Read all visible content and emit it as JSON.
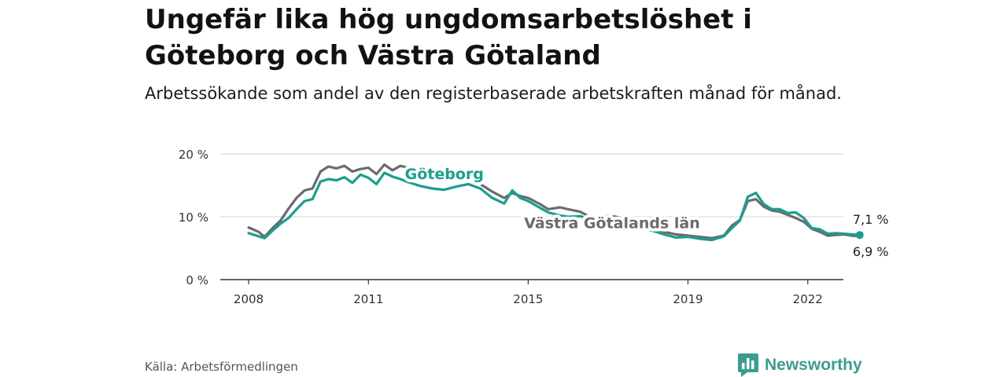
{
  "title": "Ungefär lika hög ungdomsarbetslöshet i Göteborg och Västra Götaland",
  "subtitle": "Arbetssökande som andel av den registerbaserade arbetskraften månad för månad.",
  "source": "Källa: Arbetsförmedlingen",
  "brand": {
    "name": "Newsworthy",
    "icon": "newsworthy-logo-icon"
  },
  "colors": {
    "goteborg": "#1a9e8f",
    "vastra": "#6b6b6b",
    "grid": "#dcdcdc",
    "axis": "#333333"
  },
  "chart_data": {
    "type": "line",
    "ylim": [
      0,
      20
    ],
    "xlim": [
      2008,
      2023.6
    ],
    "y_ticks": [
      {
        "value": 0,
        "label": "0 %"
      },
      {
        "value": 10,
        "label": "10 %"
      },
      {
        "value": 20,
        "label": "20 %"
      }
    ],
    "x_ticks": [
      {
        "value": 2008,
        "label": "2008"
      },
      {
        "value": 2011,
        "label": "2011"
      },
      {
        "value": 2015,
        "label": "2015"
      },
      {
        "value": 2019,
        "label": "2019"
      },
      {
        "value": 2022,
        "label": "2022"
      }
    ],
    "grid": true,
    "series": [
      {
        "name": "Västra Götalands län",
        "color_key": "vastra",
        "end_label": "6,9 %",
        "points": [
          [
            2008.0,
            8.3
          ],
          [
            2008.25,
            7.6
          ],
          [
            2008.4,
            6.8
          ],
          [
            2008.6,
            8.2
          ],
          [
            2008.8,
            9.4
          ],
          [
            2009.0,
            11.3
          ],
          [
            2009.2,
            13.0
          ],
          [
            2009.4,
            14.2
          ],
          [
            2009.6,
            14.5
          ],
          [
            2009.8,
            17.2
          ],
          [
            2010.0,
            18.0
          ],
          [
            2010.2,
            17.7
          ],
          [
            2010.4,
            18.1
          ],
          [
            2010.6,
            17.2
          ],
          [
            2010.8,
            17.6
          ],
          [
            2011.0,
            17.8
          ],
          [
            2011.2,
            16.8
          ],
          [
            2011.4,
            18.3
          ],
          [
            2011.6,
            17.4
          ],
          [
            2011.8,
            18.1
          ],
          [
            2012.0,
            17.8
          ],
          [
            2012.3,
            17.6
          ],
          [
            2012.6,
            17.4
          ],
          [
            2012.9,
            17.2
          ],
          [
            2013.2,
            16.5
          ],
          [
            2013.5,
            16.0
          ],
          [
            2013.8,
            15.2
          ],
          [
            2014.1,
            14.0
          ],
          [
            2014.4,
            13.0
          ],
          [
            2014.6,
            13.8
          ],
          [
            2014.8,
            13.3
          ],
          [
            2015.0,
            13.0
          ],
          [
            2015.3,
            12.0
          ],
          [
            2015.5,
            11.2
          ],
          [
            2015.8,
            11.5
          ],
          [
            2016.0,
            11.2
          ],
          [
            2016.3,
            10.8
          ],
          [
            2016.6,
            9.8
          ],
          [
            2016.9,
            10.2
          ],
          [
            2017.2,
            10.0
          ],
          [
            2017.5,
            9.5
          ],
          [
            2017.8,
            9.0
          ],
          [
            2018.1,
            8.2
          ],
          [
            2018.4,
            7.6
          ],
          [
            2018.7,
            7.2
          ],
          [
            2019.0,
            7.0
          ],
          [
            2019.3,
            6.8
          ],
          [
            2019.6,
            6.6
          ],
          [
            2019.9,
            7.0
          ],
          [
            2020.1,
            8.6
          ],
          [
            2020.3,
            9.5
          ],
          [
            2020.5,
            12.5
          ],
          [
            2020.7,
            12.8
          ],
          [
            2020.9,
            11.6
          ],
          [
            2021.1,
            11.0
          ],
          [
            2021.3,
            10.8
          ],
          [
            2021.5,
            10.3
          ],
          [
            2021.7,
            9.8
          ],
          [
            2021.9,
            9.2
          ],
          [
            2022.1,
            8.1
          ],
          [
            2022.3,
            7.6
          ],
          [
            2022.5,
            7.0
          ],
          [
            2022.7,
            7.1
          ],
          [
            2022.9,
            7.2
          ],
          [
            2023.1,
            7.0
          ],
          [
            2023.3,
            6.9
          ]
        ]
      },
      {
        "name": "Göteborg",
        "color_key": "goteborg",
        "end_label": "7,1 %",
        "points": [
          [
            2008.0,
            7.4
          ],
          [
            2008.25,
            6.9
          ],
          [
            2008.4,
            6.6
          ],
          [
            2008.6,
            7.8
          ],
          [
            2008.8,
            8.9
          ],
          [
            2009.0,
            9.8
          ],
          [
            2009.2,
            11.2
          ],
          [
            2009.4,
            12.5
          ],
          [
            2009.6,
            12.8
          ],
          [
            2009.8,
            15.6
          ],
          [
            2010.0,
            16.0
          ],
          [
            2010.2,
            15.8
          ],
          [
            2010.4,
            16.3
          ],
          [
            2010.6,
            15.4
          ],
          [
            2010.8,
            16.7
          ],
          [
            2011.0,
            16.2
          ],
          [
            2011.2,
            15.2
          ],
          [
            2011.4,
            17.0
          ],
          [
            2011.6,
            16.4
          ],
          [
            2011.8,
            16.0
          ],
          [
            2012.0,
            15.5
          ],
          [
            2012.3,
            14.9
          ],
          [
            2012.6,
            14.5
          ],
          [
            2012.9,
            14.3
          ],
          [
            2013.2,
            14.8
          ],
          [
            2013.5,
            15.2
          ],
          [
            2013.8,
            14.5
          ],
          [
            2014.1,
            13.0
          ],
          [
            2014.4,
            12.1
          ],
          [
            2014.6,
            14.2
          ],
          [
            2014.8,
            13.0
          ],
          [
            2015.0,
            12.5
          ],
          [
            2015.3,
            11.4
          ],
          [
            2015.5,
            10.7
          ],
          [
            2015.8,
            10.2
          ],
          [
            2016.0,
            10.0
          ],
          [
            2016.3,
            10.1
          ],
          [
            2016.6,
            9.5
          ],
          [
            2016.9,
            9.8
          ],
          [
            2017.2,
            9.6
          ],
          [
            2017.5,
            9.0
          ],
          [
            2017.8,
            8.2
          ],
          [
            2018.1,
            7.8
          ],
          [
            2018.4,
            7.2
          ],
          [
            2018.7,
            6.7
          ],
          [
            2019.0,
            6.8
          ],
          [
            2019.3,
            6.5
          ],
          [
            2019.6,
            6.3
          ],
          [
            2019.9,
            6.9
          ],
          [
            2020.1,
            8.2
          ],
          [
            2020.3,
            9.4
          ],
          [
            2020.5,
            13.2
          ],
          [
            2020.7,
            13.8
          ],
          [
            2020.9,
            12.0
          ],
          [
            2021.1,
            11.2
          ],
          [
            2021.3,
            11.2
          ],
          [
            2021.5,
            10.6
          ],
          [
            2021.7,
            10.7
          ],
          [
            2021.9,
            9.8
          ],
          [
            2022.1,
            8.2
          ],
          [
            2022.3,
            8.0
          ],
          [
            2022.5,
            7.3
          ],
          [
            2022.7,
            7.4
          ],
          [
            2022.9,
            7.3
          ],
          [
            2023.1,
            7.2
          ],
          [
            2023.3,
            7.1
          ]
        ]
      }
    ],
    "series_labels": [
      {
        "text": "Göteborg",
        "color_key": "goteborg",
        "at": [
          2012.9,
          16.0
        ]
      },
      {
        "text": "Västra Götalands län",
        "color_key": "vastra",
        "at": [
          2017.1,
          8.2
        ]
      }
    ]
  }
}
